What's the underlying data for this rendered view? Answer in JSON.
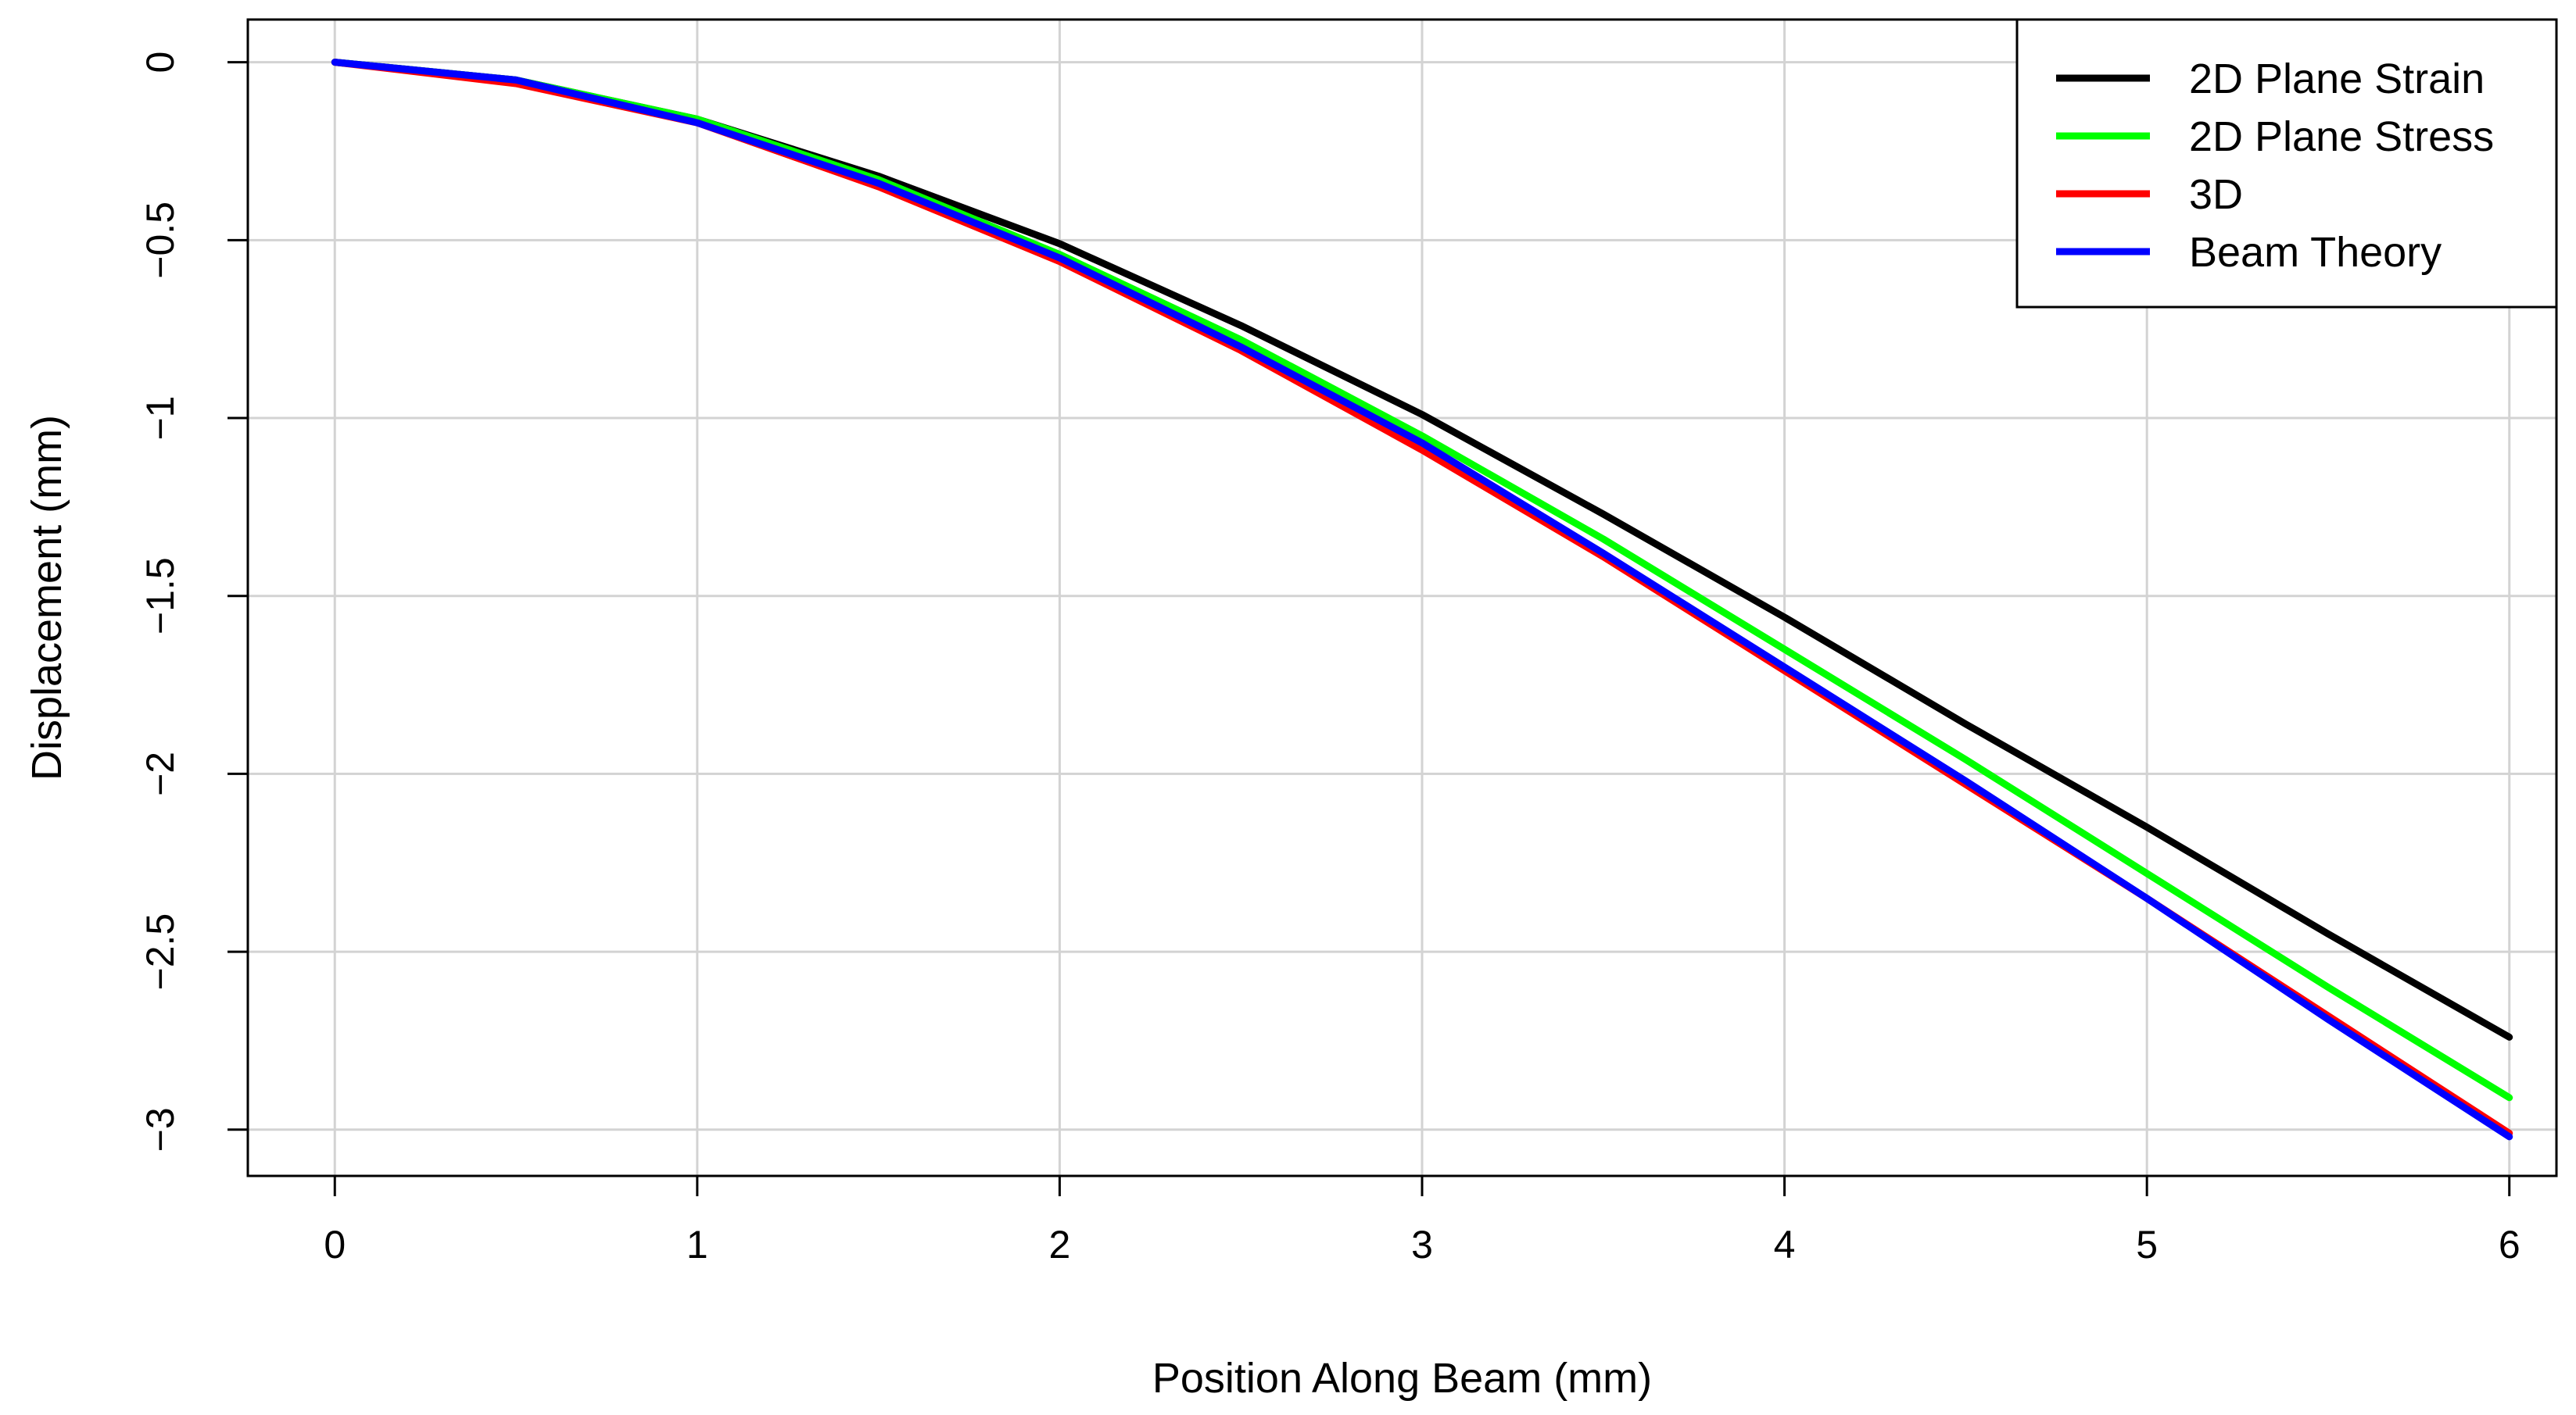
{
  "chart_data": {
    "type": "line",
    "title": "",
    "xlabel": "Position Along Beam (mm)",
    "ylabel": "Displacement (mm)",
    "xlim": [
      -0.24,
      6.13
    ],
    "ylim": [
      -3.13,
      0.12
    ],
    "x_ticks": [
      0,
      1,
      2,
      3,
      4,
      5,
      6
    ],
    "x_tick_labels": [
      "0",
      "1",
      "2",
      "3",
      "4",
      "5",
      "6"
    ],
    "y_ticks": [
      0,
      -0.5,
      -1,
      -1.5,
      -2,
      -2.5,
      -3
    ],
    "y_tick_labels": [
      "0",
      "−0.5",
      "−1",
      "−1.5",
      "−2",
      "−2.5",
      "−3"
    ],
    "grid": true,
    "legend_position": "top-right",
    "series": [
      {
        "name": "2D Plane Strain",
        "color": "#000000",
        "x": [
          0,
          0.5,
          1,
          1.5,
          2,
          2.5,
          3,
          3.5,
          4,
          4.5,
          5,
          5.5,
          6
        ],
        "y": [
          0,
          -0.05,
          -0.16,
          -0.32,
          -0.51,
          -0.74,
          -0.99,
          -1.27,
          -1.56,
          -1.86,
          -2.15,
          -2.45,
          -2.74
        ]
      },
      {
        "name": "2D Plane Stress",
        "color": "#00ff00",
        "x": [
          0,
          0.5,
          1,
          1.5,
          2,
          2.5,
          3,
          3.5,
          4,
          4.5,
          5,
          5.5,
          6
        ],
        "y": [
          0,
          -0.05,
          -0.16,
          -0.33,
          -0.54,
          -0.78,
          -1.05,
          -1.34,
          -1.65,
          -1.96,
          -2.28,
          -2.6,
          -2.91
        ]
      },
      {
        "name": "3D",
        "color": "#ff0000",
        "x": [
          0,
          0.5,
          1,
          1.5,
          2,
          2.5,
          3,
          3.5,
          4,
          4.5,
          5,
          5.5,
          6
        ],
        "y": [
          0,
          -0.06,
          -0.17,
          -0.35,
          -0.56,
          -0.81,
          -1.09,
          -1.39,
          -1.71,
          -2.03,
          -2.35,
          -2.68,
          -3.01
        ]
      },
      {
        "name": "Beam Theory",
        "color": "#0000ff",
        "x": [
          0,
          0.5,
          1,
          1.5,
          2,
          2.5,
          3,
          3.5,
          4,
          4.5,
          5,
          5.5,
          6
        ],
        "y": [
          0,
          -0.05,
          -0.17,
          -0.34,
          -0.55,
          -0.8,
          -1.07,
          -1.38,
          -1.7,
          -2.02,
          -2.35,
          -2.69,
          -3.02
        ]
      }
    ]
  }
}
